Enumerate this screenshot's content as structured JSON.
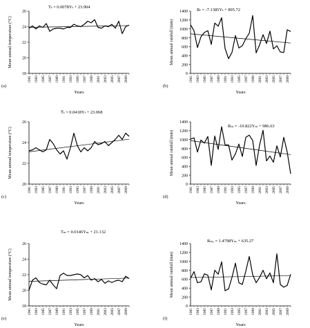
{
  "chart_data": [
    {
      "panel": "(a)",
      "type": "line",
      "equation": "Tₜ = 0.0078Yₜ + 23.904",
      "ylabel": "Mean annual temperature (°C)",
      "xlabel": "Years",
      "ylim": [
        18,
        26
      ],
      "yticks": [
        "18",
        "20",
        "22",
        "24",
        "26"
      ],
      "xticks": [
        "1981",
        "1983",
        "1985",
        "1987",
        "1989",
        "1991",
        "1993",
        "1995",
        "1997",
        "1999",
        "2001",
        "2003",
        "2005",
        "2007",
        "2009"
      ],
      "x": [
        1981,
        1982,
        1983,
        1984,
        1985,
        1986,
        1987,
        1988,
        1989,
        1990,
        1991,
        1992,
        1993,
        1994,
        1995,
        1996,
        1997,
        1998,
        1999,
        2000,
        2001,
        2002,
        2003,
        2004,
        2005,
        2006,
        2007,
        2008,
        2009,
        2010
      ],
      "values": [
        23.8,
        24.1,
        23.7,
        24.1,
        23.9,
        24.4,
        23.4,
        23.7,
        23.8,
        23.8,
        23.7,
        23.9,
        23.9,
        24.3,
        24.1,
        24.0,
        24.3,
        24.7,
        24.5,
        24.9,
        23.9,
        23.8,
        24.1,
        24.0,
        24.3,
        23.8,
        24.7,
        23.1,
        24.0,
        24.2
      ],
      "trend": {
        "slope": 0.0078,
        "intercept": 23.904
      }
    },
    {
      "panel": "(b)",
      "type": "line",
      "equation": "Rₜ = -7.1385Yₜ + 895.72",
      "ylabel": "Mean annual rainfall (mm)",
      "xlabel": "Years",
      "ylim": [
        0,
        1400
      ],
      "yticks": [
        "0",
        "200",
        "400",
        "600",
        "800",
        "1000",
        "1200",
        "1400"
      ],
      "xticks": [
        "1981",
        "1983",
        "1985",
        "1987",
        "1989",
        "1991",
        "1993",
        "1995",
        "1997",
        "1999",
        "2001",
        "2003",
        "2005",
        "2007",
        "2009"
      ],
      "x": [
        1981,
        1982,
        1983,
        1984,
        1985,
        1986,
        1987,
        1988,
        1989,
        1990,
        1991,
        1992,
        1993,
        1994,
        1995,
        1996,
        1997,
        1998,
        1999,
        2000,
        2001,
        2002,
        2003,
        2004,
        2005,
        2006,
        2007,
        2008,
        2009,
        2010
      ],
      "values": [
        1090,
        960,
        580,
        820,
        920,
        960,
        650,
        1130,
        1060,
        1250,
        560,
        330,
        470,
        850,
        570,
        620,
        780,
        900,
        1300,
        460,
        640,
        870,
        670,
        950,
        550,
        620,
        480,
        470,
        980,
        940
      ],
      "trend": {
        "slope": -7.1385,
        "intercept": 895.72
      }
    },
    {
      "panel": "(c)",
      "type": "line",
      "equation": "T̄ₜ = 0.0418Yₜ + 23.068",
      "ylabel": "Mean annual temperature (°C)",
      "xlabel": "Years",
      "ylim": [
        20,
        26
      ],
      "yticks": [
        "20",
        "22",
        "24",
        "26"
      ],
      "xticks": [
        "1981",
        "1983",
        "1985",
        "1987",
        "1989",
        "1991",
        "1993",
        "1995",
        "1997",
        "1999",
        "2001",
        "2003",
        "2005",
        "2007",
        "2009"
      ],
      "x": [
        1981,
        1982,
        1983,
        1984,
        1985,
        1986,
        1987,
        1988,
        1989,
        1990,
        1991,
        1992,
        1993,
        1994,
        1995,
        1996,
        1997,
        1998,
        1999,
        2000,
        2001,
        2002,
        2003,
        2004,
        2005,
        2006,
        2007,
        2008,
        2009,
        2010
      ],
      "values": [
        23.2,
        23.3,
        23.5,
        23.3,
        23.1,
        23.3,
        24.3,
        23.9,
        23.3,
        22.9,
        23.2,
        22.4,
        23.5,
        24.9,
        23.7,
        23.1,
        23.5,
        23.2,
        23.5,
        24.1,
        23.8,
        23.9,
        24.1,
        23.7,
        24.0,
        24.3,
        24.7,
        24.3,
        24.9,
        24.6
      ],
      "trend": {
        "slope": 0.0418,
        "intercept": 23.068
      }
    },
    {
      "panel": "(d)",
      "type": "line",
      "equation": "Rₘ = -10.822Yₘ + 986.63",
      "ylabel": "Mean annual rainfall (mm)",
      "xlabel": "Years",
      "ylim": [
        0,
        1400
      ],
      "yticks": [
        "0",
        "200",
        "400",
        "600",
        "800",
        "1000",
        "1200",
        "1400"
      ],
      "xticks": [
        "1981",
        "1983",
        "1985",
        "1987",
        "1989",
        "1991",
        "1993",
        "1995",
        "1997",
        "1999",
        "2001",
        "2003",
        "2005",
        "2007",
        "2009"
      ],
      "x": [
        1981,
        1982,
        1983,
        1984,
        1985,
        1986,
        1987,
        1988,
        1989,
        1990,
        1991,
        1992,
        1993,
        1994,
        1995,
        1996,
        1997,
        1998,
        1999,
        2000,
        2001,
        2002,
        2003,
        2004,
        2005,
        2006,
        2007,
        2008,
        2009,
        2010
      ],
      "values": [
        1010,
        1040,
        720,
        990,
        920,
        1070,
        420,
        1080,
        780,
        1290,
        880,
        880,
        540,
        680,
        900,
        620,
        1050,
        1100,
        980,
        420,
        880,
        1210,
        520,
        630,
        490,
        860,
        610,
        1050,
        720,
        230
      ],
      "trend": {
        "slope": -10.822,
        "intercept": 986.63
      }
    },
    {
      "panel": "(e)",
      "type": "line",
      "equation": "Tₘ = 0.0146Yₘ + 21.132",
      "ylabel": "Mean annual temperature (°C)",
      "xlabel": "Years",
      "ylim": [
        18,
        26
      ],
      "yticks": [
        "18",
        "20",
        "22",
        "24",
        "26"
      ],
      "xticks": [
        "1981",
        "1983",
        "1985",
        "1987",
        "1989",
        "1991",
        "1993",
        "1995",
        "1997",
        "1999",
        "2001",
        "2003",
        "2005",
        "2007",
        "2009"
      ],
      "x": [
        1981,
        1982,
        1983,
        1984,
        1985,
        1986,
        1987,
        1988,
        1989,
        1990,
        1991,
        1992,
        1993,
        1994,
        1995,
        1996,
        1997,
        1998,
        1999,
        2000,
        2001,
        2002,
        2003,
        2004,
        2005,
        2006,
        2007,
        2008,
        2009,
        2010
      ],
      "values": [
        20.0,
        21.3,
        21.6,
        21.0,
        20.8,
        20.7,
        21.3,
        20.7,
        20.2,
        21.9,
        22.2,
        21.9,
        21.9,
        22.0,
        22.1,
        22.0,
        21.6,
        21.9,
        21.3,
        21.5,
        21.1,
        21.4,
        20.9,
        21.2,
        21.0,
        21.2,
        21.3,
        21.1,
        21.8,
        21.5
      ],
      "trend": {
        "slope": 0.0146,
        "intercept": 21.132
      }
    },
    {
      "panel": "(f)",
      "type": "line",
      "equation": "Rₘₐ = 1.4798Yₘ + 635.27",
      "ylabel": "Mean annual rainfall (mm)",
      "xlabel": "Years",
      "ylim": [
        0,
        1400
      ],
      "yticks": [
        "0",
        "200",
        "400",
        "600",
        "800",
        "1000",
        "1200",
        "1400"
      ],
      "xticks": [
        "1981",
        "1983",
        "1985",
        "1987",
        "1989",
        "1991",
        "1993",
        "1995",
        "1997",
        "1999",
        "2001",
        "2003",
        "2005",
        "2007",
        "2009"
      ],
      "x": [
        1981,
        1982,
        1983,
        1984,
        1985,
        1986,
        1987,
        1988,
        1989,
        1990,
        1991,
        1992,
        1993,
        1994,
        1995,
        1996,
        1997,
        1998,
        1999,
        2000,
        2001,
        2002,
        2003,
        2004,
        2005,
        2006,
        2007,
        2008,
        2009,
        2010
      ],
      "values": [
        620,
        770,
        520,
        540,
        720,
        690,
        360,
        800,
        710,
        990,
        340,
        380,
        640,
        960,
        520,
        480,
        780,
        1110,
        700,
        520,
        640,
        800,
        610,
        740,
        520,
        1170,
        480,
        420,
        460,
        710
      ],
      "trend": {
        "slope": 1.4798,
        "intercept": 635.27
      }
    }
  ]
}
